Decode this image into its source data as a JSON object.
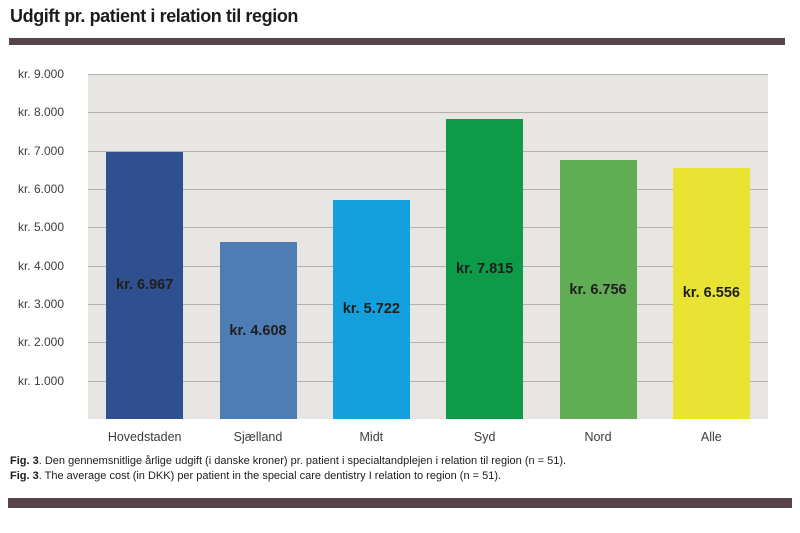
{
  "header": {
    "title": "Udgift pr. patient i relation til region"
  },
  "chart_data": {
    "type": "bar",
    "title": "Udgift pr. patient i relation til region",
    "xlabel": "",
    "ylabel": "",
    "ylim": [
      0,
      9000
    ],
    "grid": true,
    "legend": "none",
    "plot_bg": "#e8e6e3",
    "gridline_color": "#b3b1ae",
    "categories": [
      "Hovedstaden",
      "Sjælland",
      "Midt",
      "Syd",
      "Nord",
      "Alle"
    ],
    "values": [
      6967,
      4608,
      5722,
      7815,
      6756,
      6556
    ],
    "bar_labels": [
      "kr. 6.967",
      "kr. 4.608",
      "kr. 5.722",
      "kr. 7.815",
      "kr. 6.756",
      "kr. 6.556"
    ],
    "bar_colors": [
      "#2f4f8e",
      "#4e7db5",
      "#14a0dd",
      "#0d9b49",
      "#61ad55",
      "#e9e434"
    ],
    "y_ticks": [
      {
        "value": 1000,
        "label": "kr. 1.000"
      },
      {
        "value": 2000,
        "label": "kr. 2.000"
      },
      {
        "value": 3000,
        "label": "kr. 3.000"
      },
      {
        "value": 4000,
        "label": "kr. 4.000"
      },
      {
        "value": 5000,
        "label": "kr. 5.000"
      },
      {
        "value": 6000,
        "label": "kr. 6.000"
      },
      {
        "value": 7000,
        "label": "kr. 7.000"
      },
      {
        "value": 8000,
        "label": "kr. 8.000"
      },
      {
        "value": 9000,
        "label": "kr. 9.000"
      }
    ]
  },
  "caption": {
    "line1_prefix": "Fig. 3",
    "line1_text": ". Den gennemsnitlige årlige udgift (i danske kroner) pr. patient i specialtandplejen i relation til region (n = 51).",
    "line2_prefix": "Fig. 3",
    "line2_text": ". The average cost (in DKK) per patient in the special care dentistry I relation to region (n = 51)."
  },
  "decorations": {
    "rule_color": "#584549"
  }
}
